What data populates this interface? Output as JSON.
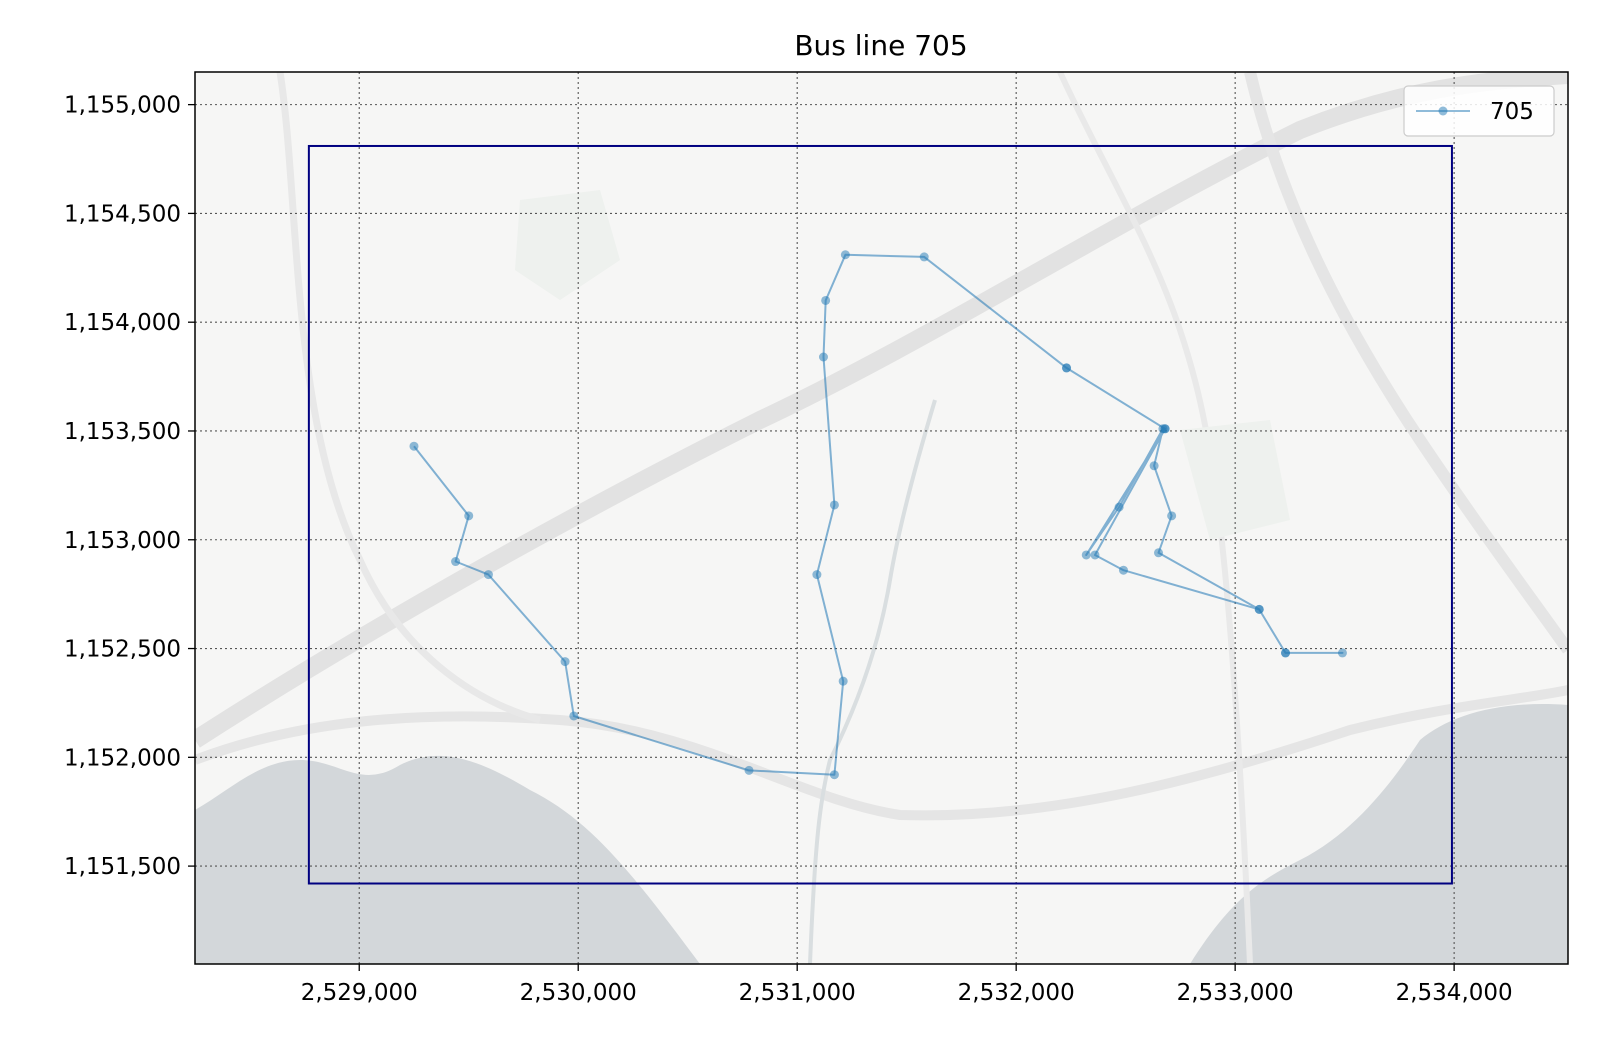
{
  "chart_data": {
    "type": "line",
    "title": "Bus line 705",
    "xlabel": "",
    "ylabel": "",
    "xlim": [
      2528250,
      2534520
    ],
    "ylim": [
      1151050,
      1155150
    ],
    "x_ticks": [
      2529000,
      2530000,
      2531000,
      2532000,
      2533000,
      2534000
    ],
    "y_ticks": [
      1151500,
      1152000,
      1152500,
      1153000,
      1153500,
      1154000,
      1154500,
      1155000
    ],
    "x_tick_labels": [
      "2,529,000",
      "2,530,000",
      "2,531,000",
      "2,532,000",
      "2,533,000",
      "2,534,000"
    ],
    "y_tick_labels": [
      "1,151,500",
      "1,152,000",
      "1,152,500",
      "1,153,000",
      "1,153,500",
      "1,154,000",
      "1,154,500",
      "1,155,000"
    ],
    "grid": true,
    "legend_position": "top-right",
    "bounding_box": {
      "x0": 2528770,
      "x1": 2533990,
      "y0": 1151420,
      "y1": 1154810,
      "color": "#000080"
    },
    "background": "map",
    "series": [
      {
        "name": "705",
        "color": "#1f77b4",
        "points": [
          [
            2529250,
            1153430
          ],
          [
            2529500,
            1153110
          ],
          [
            2529440,
            1152900
          ],
          [
            2529590,
            1152840
          ],
          [
            2529940,
            1152440
          ],
          [
            2529980,
            1152190
          ],
          [
            2530780,
            1151940
          ],
          [
            2531170,
            1151920
          ],
          [
            2531210,
            1152350
          ],
          [
            2531090,
            1152840
          ],
          [
            2531170,
            1153160
          ],
          [
            2531120,
            1153840
          ],
          [
            2531130,
            1154100
          ],
          [
            2531220,
            1154310
          ],
          [
            2531580,
            1154300
          ],
          [
            2532230,
            1153790
          ],
          [
            2532680,
            1153510
          ],
          [
            2532320,
            1152930
          ],
          [
            2532470,
            1153150
          ],
          [
            2532670,
            1153510
          ],
          [
            2532630,
            1153340
          ],
          [
            2532710,
            1153110
          ],
          [
            2532650,
            1152940
          ],
          [
            2533110,
            1152680
          ],
          [
            2533230,
            1152480
          ],
          [
            2533490,
            1152480
          ],
          [
            2533230,
            1152480
          ],
          [
            2533110,
            1152680
          ],
          [
            2532490,
            1152860
          ],
          [
            2532360,
            1152930
          ],
          [
            2532680,
            1153510
          ],
          [
            2532230,
            1153790
          ]
        ]
      }
    ]
  }
}
